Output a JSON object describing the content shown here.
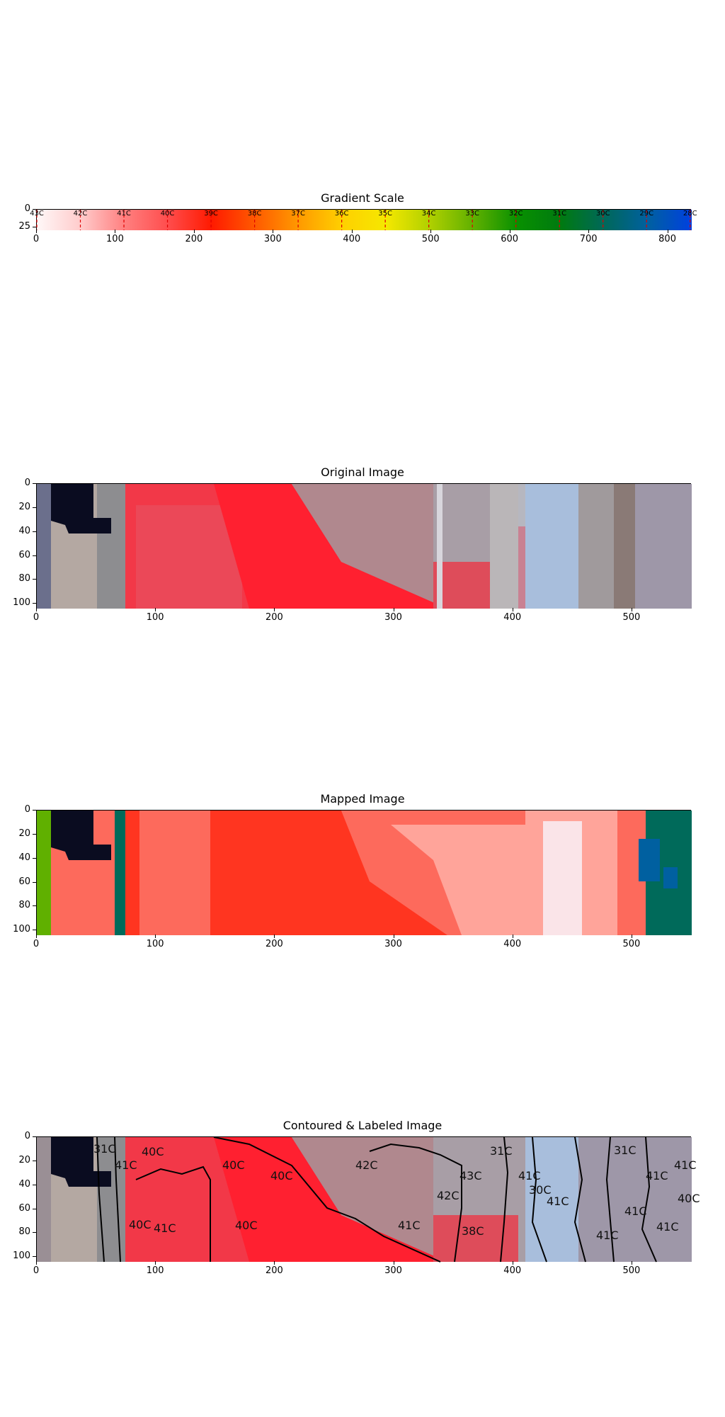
{
  "chart_data": [
    {
      "type": "heatmap",
      "title": "Gradient Scale",
      "x_ticks": [
        "0",
        "100",
        "200",
        "300",
        "400",
        "500",
        "600",
        "700",
        "800"
      ],
      "y_ticks": [
        "0",
        "25"
      ],
      "temperature_labels": [
        "43C",
        "42C",
        "41C",
        "40C",
        "39C",
        "38C",
        "37C",
        "36C",
        "35C",
        "34C",
        "33C",
        "32C",
        "31C",
        "30C",
        "29C",
        "28C"
      ],
      "gradient_colors": [
        "#fff8f8",
        "#ffcccc",
        "#ff8080",
        "#ff4d4d",
        "#ff1a00",
        "#ff5a00",
        "#ff9a00",
        "#ffd000",
        "#f5e800",
        "#b0d000",
        "#60b000",
        "#089000",
        "#007a10",
        "#00685a",
        "#0060a0",
        "#0040e0"
      ],
      "marker_color": "#e00000"
    },
    {
      "type": "heatmap",
      "title": "Original Image",
      "x_ticks": [
        "0",
        "100",
        "200",
        "300",
        "400",
        "500"
      ],
      "y_ticks": [
        "0",
        "20",
        "40",
        "60",
        "80",
        "100"
      ]
    },
    {
      "type": "heatmap",
      "title": "Mapped Image",
      "x_ticks": [
        "0",
        "100",
        "200",
        "300",
        "400",
        "500"
      ],
      "y_ticks": [
        "0",
        "20",
        "40",
        "60",
        "80",
        "100"
      ]
    },
    {
      "type": "heatmap",
      "title": "Contoured & Labeled Image",
      "x_ticks": [
        "0",
        "100",
        "200",
        "300",
        "400",
        "500"
      ],
      "y_ticks": [
        "0",
        "20",
        "40",
        "60",
        "80",
        "100"
      ],
      "region_labels": [
        "31C",
        "40C",
        "41C",
        "40C",
        "40C",
        "40C",
        "42C",
        "41C",
        "42C",
        "43C",
        "38C",
        "31C",
        "41C",
        "30C",
        "41C",
        "31C",
        "41C",
        "41C",
        "41C",
        "40C",
        "41C",
        "41C",
        "40C",
        "41C"
      ]
    }
  ]
}
